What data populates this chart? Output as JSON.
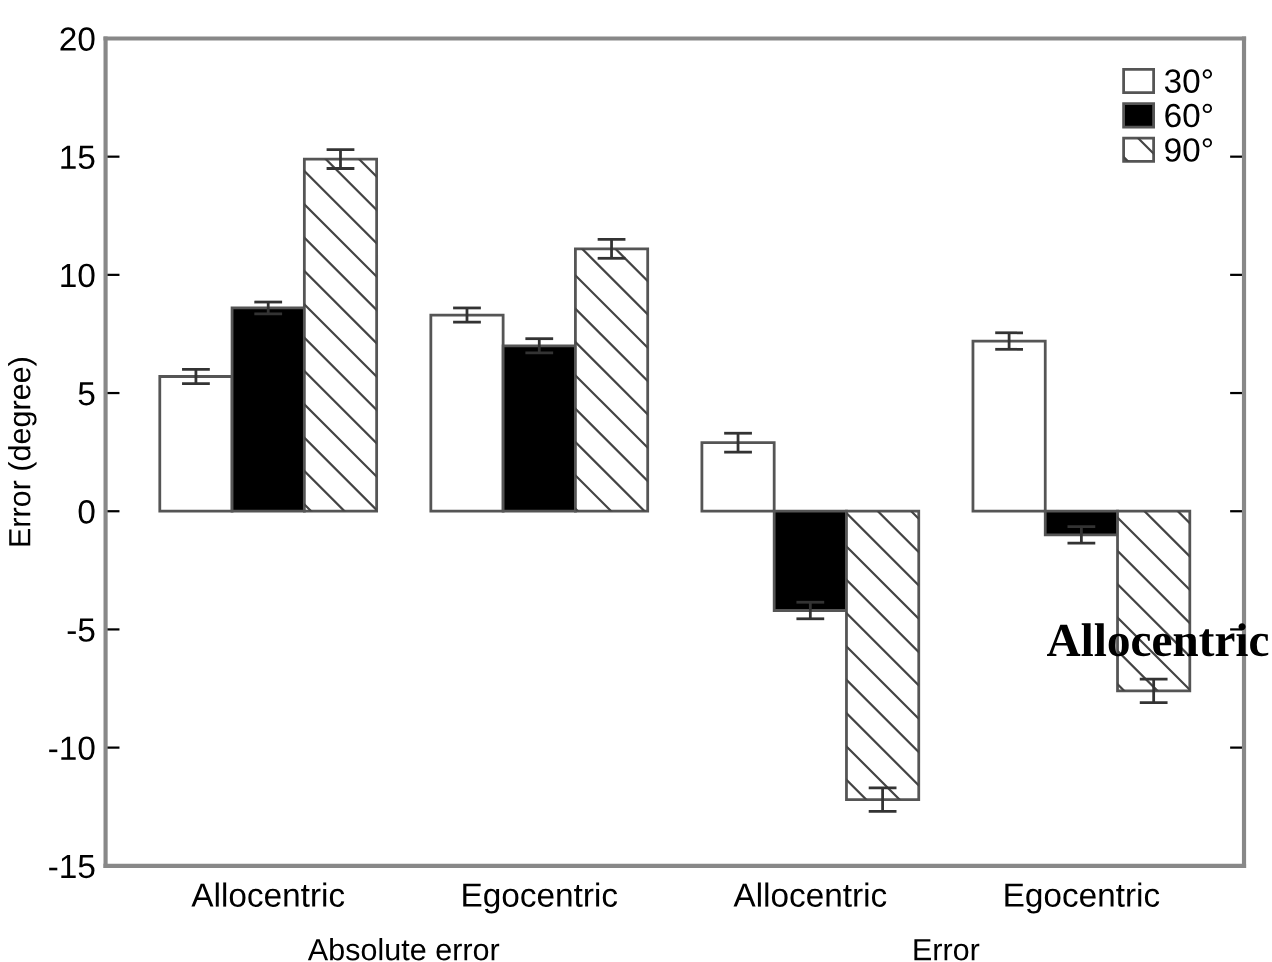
{
  "chart_data": {
    "type": "bar",
    "ylabel": "Error (degree)",
    "categories": [
      "Allocentric",
      "Egocentric",
      "Allocentric",
      "Egocentric"
    ],
    "series": [
      {
        "name": "30°",
        "color": "#ffffff",
        "values": [
          5.7,
          8.3,
          2.9,
          7.2
        ],
        "errors": [
          0.3,
          0.3,
          0.4,
          0.35
        ]
      },
      {
        "name": "60°",
        "color": "#000000",
        "values": [
          8.6,
          7.0,
          -4.2,
          -1.0
        ],
        "errors": [
          0.25,
          0.3,
          0.35,
          0.35
        ]
      },
      {
        "name": "90°",
        "color": "#ffffff",
        "values": [
          14.9,
          11.1,
          -12.2,
          -7.6
        ],
        "errors": [
          0.4,
          0.4,
          0.5,
          0.5
        ]
      }
    ],
    "ylim": [
      -15,
      20
    ],
    "yticks": [
      -15,
      -10,
      -5,
      0,
      5,
      10,
      15,
      20
    ],
    "grid": false,
    "legend": "top right",
    "annotations": [
      "Absolute error",
      "Error",
      "Allocentric"
    ]
  }
}
